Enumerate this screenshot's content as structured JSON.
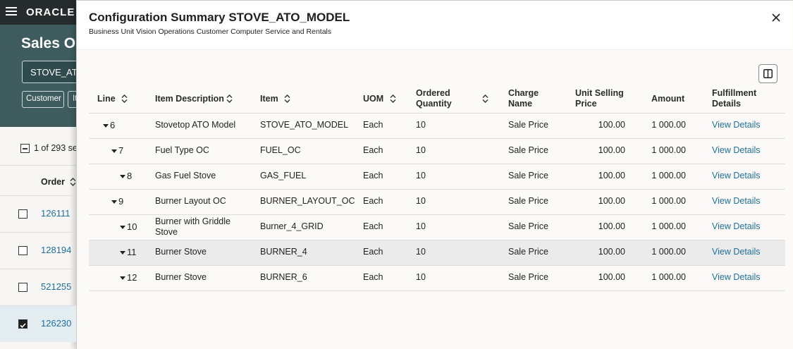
{
  "background": {
    "logo": "ORACLE",
    "page_title": "Sales Or",
    "search_value": "STOVE_ATO",
    "filters": [
      "Customer",
      "It"
    ],
    "selection_count": "1 of 293 se",
    "column_header": "Order",
    "orders": [
      "126111",
      "128194",
      "521255",
      "126230"
    ]
  },
  "dialog": {
    "title": "Configuration Summary STOVE_ATO_MODEL",
    "subtitle": "Business Unit Vision Operations Customer Computer Service and Rentals",
    "table": {
      "columns": [
        "Line",
        "Item Description",
        "Item",
        "UOM",
        "Ordered Quantity",
        "Charge Name",
        "Unit Selling Price",
        "Amount",
        "Fulfillment Details"
      ],
      "rows": [
        [
          "6",
          "Stovetop ATO Model",
          "STOVE_ATO_MODEL",
          "Each",
          "10",
          "Sale Price",
          "100.00",
          "1 000.00",
          "View Details"
        ],
        [
          "7",
          "Fuel Type OC",
          "FUEL_OC",
          "Each",
          "10",
          "Sale Price",
          "100.00",
          "1 000.00",
          "View Details"
        ],
        [
          "8",
          "Gas Fuel Stove",
          "GAS_FUEL",
          "Each",
          "10",
          "Sale Price",
          "100.00",
          "1 000.00",
          "View Details"
        ],
        [
          "9",
          "Burner Layout OC",
          "BURNER_LAYOUT_OC",
          "Each",
          "10",
          "Sale Price",
          "100.00",
          "1 000.00",
          "View Details"
        ],
        [
          "10",
          "Burner with Griddle Stove",
          "Burner_4_GRID",
          "Each",
          "10",
          "Sale Price",
          "100.00",
          "1 000.00",
          "View Details"
        ],
        [
          "11",
          "Burner Stove",
          "BURNER_4",
          "Each",
          "10",
          "Sale Price",
          "100.00",
          "1 000.00",
          "View Details"
        ],
        [
          "12",
          "Burner Stove",
          "BURNER_6",
          "Each",
          "10",
          "Sale Price",
          "100.00",
          "1 000.00",
          "View Details"
        ]
      ]
    }
  }
}
